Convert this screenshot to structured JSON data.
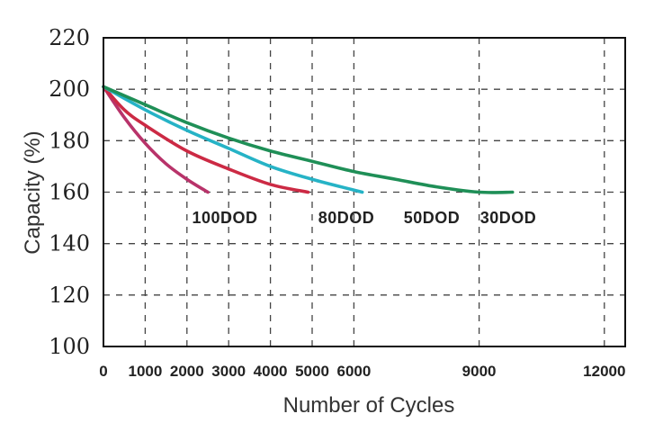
{
  "chart_data": {
    "type": "line",
    "xlabel": "Number of Cycles",
    "ylabel": "Capacity (%)",
    "xlim": [
      0,
      12500
    ],
    "ylim": [
      100,
      220
    ],
    "x_ticks": [
      0,
      1000,
      2000,
      3000,
      4000,
      5000,
      6000,
      9000,
      12000
    ],
    "y_ticks": [
      100,
      120,
      140,
      160,
      180,
      200,
      220
    ],
    "grid": true,
    "legend": "none",
    "series": [
      {
        "name": "100DOD",
        "color": "#b8336a",
        "x": [
          0,
          500,
          1000,
          1500,
          2000,
          2500
        ],
        "y": [
          201,
          189,
          179,
          171,
          165,
          160
        ]
      },
      {
        "name": "80DOD",
        "color": "#cc2a44",
        "x": [
          0,
          500,
          1000,
          2000,
          3000,
          4000,
          4900
        ],
        "y": [
          201,
          192,
          186,
          176,
          169,
          163,
          160
        ]
      },
      {
        "name": "50DOD",
        "color": "#26b3c6",
        "x": [
          0,
          1000,
          2000,
          3000,
          4000,
          5000,
          6200
        ],
        "y": [
          201,
          192,
          184,
          177,
          170,
          165,
          160
        ]
      },
      {
        "name": "30DOD",
        "color": "#1f8f57",
        "x": [
          0,
          1000,
          2000,
          3000,
          4000,
          5000,
          6000,
          7000,
          8000,
          9000,
          9800
        ],
        "y": [
          201,
          194,
          187,
          181,
          176,
          172,
          168,
          165,
          162,
          160,
          160
        ]
      }
    ]
  }
}
